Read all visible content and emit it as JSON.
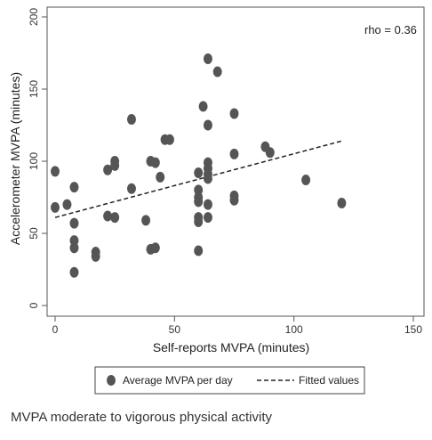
{
  "chart_data": {
    "type": "scatter",
    "xlabel": "Self-reports MVPA (minutes)",
    "ylabel": "Accelerometer MVPA (minutes)",
    "xlim": [
      0,
      150
    ],
    "ylim": [
      0,
      200
    ],
    "xticks": [
      "0",
      "50",
      "100",
      "150"
    ],
    "yticks": [
      "0",
      "50",
      "100",
      "150",
      "200"
    ],
    "annotation": "rho = 0.36",
    "grid": false,
    "legend_position": "bottom",
    "colors": {
      "points": "#555555",
      "fit": "#222222"
    },
    "series": [
      {
        "name": "Average MVPA per day",
        "points": [
          [
            0,
            93
          ],
          [
            0,
            68
          ],
          [
            5,
            70
          ],
          [
            8,
            82
          ],
          [
            8,
            57
          ],
          [
            8,
            45
          ],
          [
            8,
            40
          ],
          [
            8,
            23
          ],
          [
            17,
            37
          ],
          [
            17,
            34
          ],
          [
            22,
            94
          ],
          [
            22,
            62
          ],
          [
            25,
            100
          ],
          [
            25,
            97
          ],
          [
            25,
            61
          ],
          [
            32,
            129
          ],
          [
            32,
            81
          ],
          [
            38,
            59
          ],
          [
            40,
            100
          ],
          [
            40,
            39
          ],
          [
            42,
            99
          ],
          [
            42,
            40
          ],
          [
            44,
            89
          ],
          [
            46,
            115
          ],
          [
            48,
            115
          ],
          [
            60,
            92
          ],
          [
            60,
            80
          ],
          [
            60,
            75
          ],
          [
            60,
            72
          ],
          [
            60,
            61
          ],
          [
            60,
            58
          ],
          [
            60,
            38
          ],
          [
            62,
            138
          ],
          [
            64,
            171
          ],
          [
            64,
            125
          ],
          [
            64,
            99
          ],
          [
            64,
            95
          ],
          [
            64,
            91
          ],
          [
            64,
            88
          ],
          [
            64,
            70
          ],
          [
            64,
            61
          ],
          [
            68,
            162
          ],
          [
            75,
            133
          ],
          [
            75,
            105
          ],
          [
            75,
            76
          ],
          [
            75,
            73
          ],
          [
            88,
            110
          ],
          [
            90,
            106
          ],
          [
            105,
            87
          ],
          [
            120,
            71
          ]
        ]
      },
      {
        "name": "Fitted values",
        "line": [
          [
            0,
            61
          ],
          [
            120,
            114
          ]
        ]
      }
    ]
  },
  "caption": "MVPA moderate to vigorous physical activity"
}
